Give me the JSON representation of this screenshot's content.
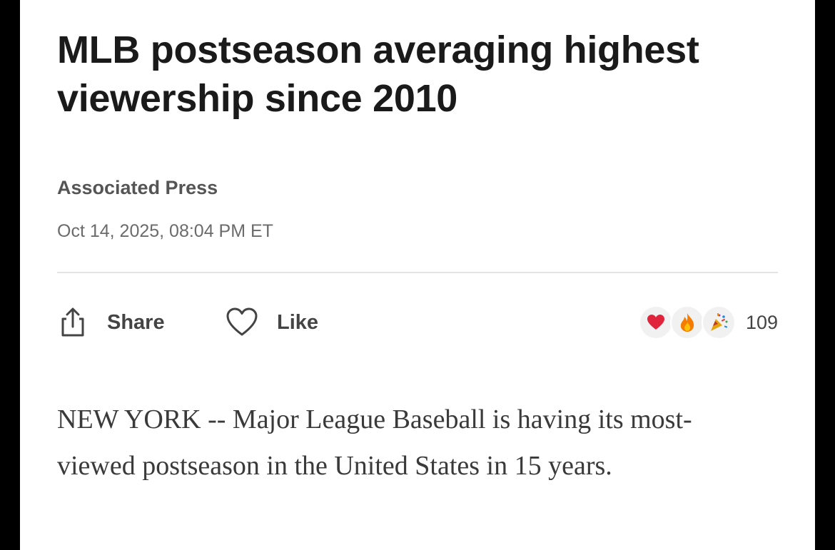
{
  "article": {
    "headline": "MLB postseason averaging highest viewership since 2010",
    "byline": "Associated Press",
    "timestamp": "Oct 14, 2025, 08:04 PM ET",
    "body": "NEW YORK -- Major League Baseball is having its most-viewed postseason in the United States in 15 years."
  },
  "actions": {
    "share_label": "Share",
    "share_icon": "share-icon",
    "like_label": "Like",
    "like_icon": "heart-outline-icon"
  },
  "reactions": {
    "icons": [
      "red-heart-icon",
      "fire-icon",
      "party-popper-icon"
    ],
    "count": "109"
  },
  "colors": {
    "headline": "#1a1a1a",
    "byline": "#555555",
    "timestamp": "#6b6b6b",
    "body": "#3a3a3a",
    "heart": "#e0243b",
    "fire": "#f57c00",
    "background": "#ffffff"
  }
}
